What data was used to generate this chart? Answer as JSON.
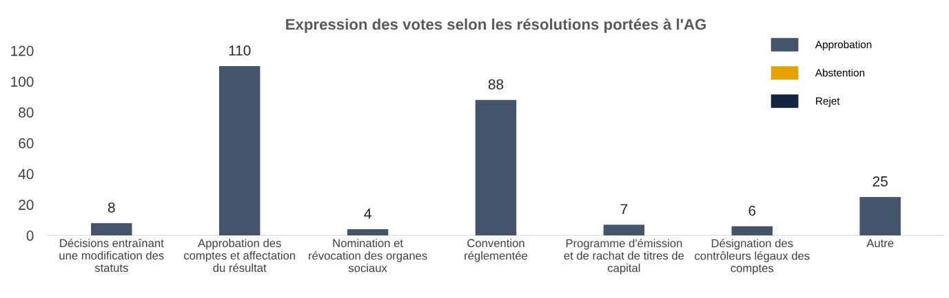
{
  "chart_data": {
    "type": "bar",
    "title": "Expression des votes selon les résolutions portées à l'AG",
    "categories": [
      "Décisions entraînant\nune modification des\nstatuts",
      "Approbation des\ncomptes et affectation\ndu résultat",
      "Nomination et\nrévocation des organes\nsociaux",
      "Convention\nréglementée",
      "Programme d'émission\net de rachat de titres de\ncapital",
      "Désignation des\ncontrôleurs légaux des\ncomptes",
      "Autre"
    ],
    "series": [
      {
        "name": "Approbation",
        "color": "#44546a",
        "values": [
          8,
          110,
          4,
          88,
          7,
          6,
          25
        ]
      },
      {
        "name": "Abstention",
        "color": "#e3a300",
        "values": [
          null,
          null,
          null,
          null,
          null,
          null,
          null
        ]
      },
      {
        "name": "Rejet",
        "color": "#13263f",
        "values": [
          null,
          null,
          null,
          null,
          null,
          null,
          null
        ]
      }
    ],
    "ylim": [
      0,
      120
    ],
    "yticks": [
      0,
      20,
      40,
      60,
      80,
      100,
      120
    ],
    "grid": false,
    "legend": "top right",
    "data_labels": true
  }
}
